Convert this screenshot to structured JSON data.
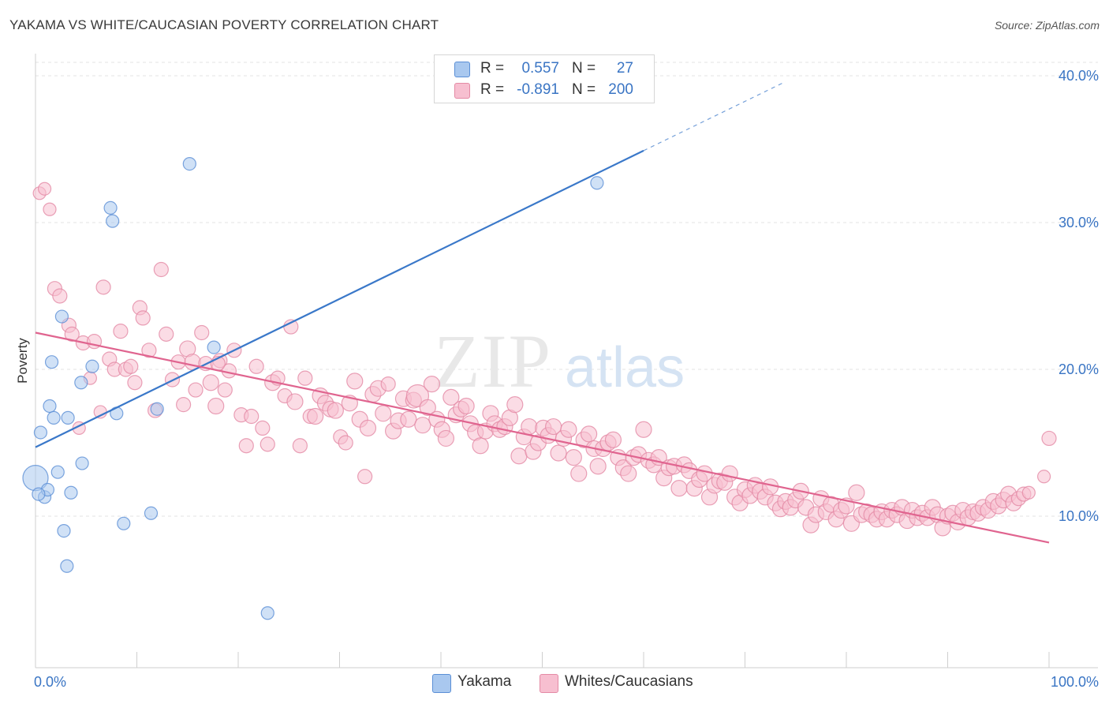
{
  "title": "YAKAMA VS WHITE/CAUCASIAN POVERTY CORRELATION CHART",
  "source": "Source: ZipAtlas.com",
  "watermark": {
    "zip": "ZIP",
    "atlas": "atlas"
  },
  "legend": {
    "rows": [
      {
        "r_label": "R =",
        "r_value": "0.557",
        "n_label": "N =",
        "n_value": "27",
        "color": "#a9c8ef",
        "border": "#5b8fd6"
      },
      {
        "r_label": "R =",
        "r_value": "-0.891",
        "n_label": "N =",
        "n_value": "200",
        "color": "#f7bfd0",
        "border": "#e48aa5"
      }
    ]
  },
  "bottom_legend": [
    {
      "label": "Yakama",
      "color": "#a9c8ef",
      "border": "#5b8fd6"
    },
    {
      "label": "Whites/Caucasians",
      "color": "#f7bfd0",
      "border": "#e48aa5"
    }
  ],
  "chart_data": {
    "type": "scatter",
    "title": "YAKAMA VS WHITE/CAUCASIAN POVERTY CORRELATION CHART",
    "xlabel": "",
    "ylabel": "Poverty",
    "xlim": [
      0,
      100
    ],
    "ylim": [
      0,
      40
    ],
    "x_tick_labels": [
      "0.0%",
      "100.0%"
    ],
    "y_ticks": [
      10,
      20,
      30,
      40
    ],
    "y_tick_labels": [
      "10.0%",
      "20.0%",
      "30.0%",
      "40.0%"
    ],
    "grid": true,
    "legend_position": "top-center",
    "series": [
      {
        "name": "Yakama",
        "color": "#a9c8ef",
        "stroke": "#5b8fd6",
        "trend_color": "#3a78c9",
        "trend": {
          "x0": 0,
          "y0": 14.7,
          "x1": 60,
          "y1": 34.9,
          "dash_to_x": 74,
          "dash_to_y": 39.6
        },
        "points": [
          [
            0.0,
            12.6,
            16
          ],
          [
            0.9,
            11.3,
            8
          ],
          [
            1.2,
            11.8,
            8
          ],
          [
            1.4,
            17.5,
            8
          ],
          [
            1.6,
            20.5,
            8
          ],
          [
            1.8,
            16.7,
            8
          ],
          [
            0.5,
            15.7,
            8
          ],
          [
            2.2,
            13.0,
            8
          ],
          [
            2.6,
            23.6,
            8
          ],
          [
            2.8,
            9.0,
            8
          ],
          [
            3.1,
            6.6,
            8
          ],
          [
            3.2,
            16.7,
            8
          ],
          [
            3.5,
            11.6,
            8
          ],
          [
            4.5,
            19.1,
            8
          ],
          [
            4.6,
            13.6,
            8
          ],
          [
            5.6,
            20.2,
            8
          ],
          [
            7.4,
            31.0,
            8
          ],
          [
            7.6,
            30.1,
            8
          ],
          [
            8.0,
            17.0,
            8
          ],
          [
            8.7,
            9.5,
            8
          ],
          [
            11.4,
            10.2,
            8
          ],
          [
            12.0,
            17.3,
            8
          ],
          [
            15.2,
            34.0,
            8
          ],
          [
            17.6,
            21.5,
            8
          ],
          [
            22.9,
            3.4,
            8
          ],
          [
            55.4,
            32.7,
            8
          ],
          [
            0.3,
            11.5,
            8
          ]
        ]
      },
      {
        "name": "Whites/Caucasians",
        "color": "#f7bfd0",
        "stroke": "#e48aa5",
        "trend_color": "#e0648f",
        "trend": {
          "x0": 0,
          "y0": 22.5,
          "x1": 100,
          "y1": 8.2
        },
        "points": [
          [
            0.4,
            32.0,
            8
          ],
          [
            0.9,
            32.3,
            8
          ],
          [
            1.4,
            30.9,
            8
          ],
          [
            1.9,
            25.5,
            9
          ],
          [
            2.4,
            25.0,
            9
          ],
          [
            3.3,
            23.0,
            9
          ],
          [
            3.6,
            22.4,
            9
          ],
          [
            4.3,
            16.0,
            8
          ],
          [
            4.7,
            21.8,
            9
          ],
          [
            5.4,
            19.4,
            8
          ],
          [
            5.8,
            21.9,
            9
          ],
          [
            6.4,
            17.1,
            8
          ],
          [
            6.7,
            25.6,
            9
          ],
          [
            7.3,
            20.7,
            9
          ],
          [
            7.8,
            20.0,
            9
          ],
          [
            8.4,
            22.6,
            9
          ],
          [
            8.9,
            20.0,
            9
          ],
          [
            9.4,
            20.2,
            9
          ],
          [
            9.8,
            19.1,
            9
          ],
          [
            10.3,
            24.2,
            9
          ],
          [
            10.6,
            23.5,
            9
          ],
          [
            11.2,
            21.3,
            9
          ],
          [
            11.8,
            17.2,
            9
          ],
          [
            12.4,
            26.8,
            9
          ],
          [
            12.9,
            22.4,
            9
          ],
          [
            13.5,
            19.3,
            9
          ],
          [
            14.1,
            20.5,
            9
          ],
          [
            14.6,
            17.6,
            9
          ],
          [
            15.0,
            21.4,
            10
          ],
          [
            15.5,
            20.5,
            10
          ],
          [
            15.8,
            18.6,
            9
          ],
          [
            16.4,
            22.5,
            9
          ],
          [
            16.8,
            20.4,
            9
          ],
          [
            17.3,
            19.1,
            10
          ],
          [
            17.8,
            17.5,
            10
          ],
          [
            18.2,
            20.6,
            9
          ],
          [
            18.7,
            18.6,
            9
          ],
          [
            19.1,
            19.9,
            9
          ],
          [
            19.6,
            21.3,
            9
          ],
          [
            20.3,
            16.9,
            9
          ],
          [
            20.8,
            14.8,
            9
          ],
          [
            21.3,
            16.8,
            9
          ],
          [
            21.8,
            20.2,
            9
          ],
          [
            22.4,
            16.0,
            9
          ],
          [
            22.9,
            14.9,
            9
          ],
          [
            23.4,
            19.1,
            10
          ],
          [
            23.9,
            19.4,
            9
          ],
          [
            24.6,
            18.2,
            9
          ],
          [
            25.2,
            22.9,
            9
          ],
          [
            25.6,
            17.8,
            10
          ],
          [
            26.1,
            14.8,
            9
          ],
          [
            26.6,
            19.4,
            9
          ],
          [
            27.1,
            16.8,
            9
          ],
          [
            27.6,
            16.8,
            10
          ],
          [
            28.1,
            18.2,
            10
          ],
          [
            28.6,
            17.7,
            10
          ],
          [
            29.1,
            17.3,
            10
          ],
          [
            29.6,
            17.2,
            10
          ],
          [
            30.1,
            15.4,
            9
          ],
          [
            30.6,
            15.0,
            9
          ],
          [
            31.0,
            17.7,
            10
          ],
          [
            31.5,
            19.2,
            10
          ],
          [
            32.0,
            16.6,
            10
          ],
          [
            32.5,
            12.7,
            9
          ],
          [
            32.8,
            16.0,
            10
          ],
          [
            33.3,
            18.3,
            10
          ],
          [
            33.8,
            18.7,
            10
          ],
          [
            34.3,
            17.0,
            10
          ],
          [
            34.8,
            19.0,
            9
          ],
          [
            35.3,
            15.8,
            10
          ],
          [
            35.8,
            16.5,
            10
          ],
          [
            36.3,
            18.0,
            10
          ],
          [
            36.8,
            16.6,
            10
          ],
          [
            37.3,
            17.9,
            10
          ],
          [
            37.7,
            18.2,
            14
          ],
          [
            38.2,
            16.2,
            10
          ],
          [
            38.7,
            17.4,
            10
          ],
          [
            39.1,
            19.0,
            10
          ],
          [
            39.6,
            16.6,
            10
          ],
          [
            40.1,
            15.9,
            10
          ],
          [
            40.5,
            15.3,
            10
          ],
          [
            41.0,
            18.1,
            10
          ],
          [
            41.5,
            16.9,
            10
          ],
          [
            42.0,
            17.3,
            10
          ],
          [
            42.5,
            17.5,
            10
          ],
          [
            42.9,
            16.3,
            10
          ],
          [
            43.4,
            15.7,
            10
          ],
          [
            43.9,
            14.8,
            10
          ],
          [
            44.4,
            15.8,
            10
          ],
          [
            44.9,
            17.0,
            10
          ],
          [
            45.3,
            16.3,
            10
          ],
          [
            45.8,
            15.9,
            10
          ],
          [
            46.3,
            16.1,
            10
          ],
          [
            46.8,
            16.7,
            10
          ],
          [
            47.3,
            17.6,
            10
          ],
          [
            47.7,
            14.1,
            10
          ],
          [
            48.2,
            15.4,
            10
          ],
          [
            48.7,
            16.1,
            10
          ],
          [
            49.1,
            14.4,
            10
          ],
          [
            49.6,
            15.0,
            10
          ],
          [
            50.1,
            16.0,
            10
          ],
          [
            50.6,
            15.5,
            10
          ],
          [
            51.1,
            16.1,
            10
          ],
          [
            51.6,
            14.3,
            10
          ],
          [
            52.1,
            15.3,
            10
          ],
          [
            52.6,
            15.9,
            10
          ],
          [
            53.1,
            14.0,
            10
          ],
          [
            53.6,
            12.9,
            10
          ],
          [
            54.1,
            15.2,
            10
          ],
          [
            54.6,
            15.6,
            10
          ],
          [
            55.1,
            14.6,
            10
          ],
          [
            55.5,
            13.4,
            10
          ],
          [
            56.0,
            14.6,
            10
          ],
          [
            56.5,
            15.0,
            10
          ],
          [
            57.0,
            15.2,
            10
          ],
          [
            57.5,
            14.0,
            10
          ],
          [
            58.0,
            13.3,
            10
          ],
          [
            58.5,
            12.9,
            10
          ],
          [
            59.0,
            14.0,
            10
          ],
          [
            59.5,
            14.2,
            10
          ],
          [
            60.0,
            15.9,
            10
          ],
          [
            60.5,
            13.8,
            10
          ],
          [
            61.0,
            13.5,
            10
          ],
          [
            61.5,
            14.0,
            10
          ],
          [
            62.0,
            12.6,
            10
          ],
          [
            62.5,
            13.3,
            10
          ],
          [
            63.0,
            13.4,
            10
          ],
          [
            63.5,
            11.9,
            10
          ],
          [
            64.0,
            13.5,
            10
          ],
          [
            64.5,
            13.1,
            10
          ],
          [
            65.0,
            11.9,
            10
          ],
          [
            65.5,
            12.5,
            10
          ],
          [
            66.0,
            12.9,
            10
          ],
          [
            66.5,
            11.3,
            10
          ],
          [
            67.0,
            12.1,
            10
          ],
          [
            67.5,
            12.4,
            10
          ],
          [
            68.0,
            12.3,
            10
          ],
          [
            68.5,
            12.9,
            10
          ],
          [
            69.0,
            11.3,
            10
          ],
          [
            69.5,
            10.9,
            10
          ],
          [
            70.0,
            11.8,
            10
          ],
          [
            70.5,
            11.4,
            10
          ],
          [
            71.0,
            12.1,
            10
          ],
          [
            71.5,
            11.7,
            10
          ],
          [
            72.0,
            11.3,
            10
          ],
          [
            72.5,
            12.0,
            10
          ],
          [
            73.0,
            10.9,
            10
          ],
          [
            73.5,
            10.5,
            10
          ],
          [
            74.0,
            11.0,
            10
          ],
          [
            74.5,
            10.6,
            10
          ],
          [
            75.0,
            11.1,
            10
          ],
          [
            75.5,
            11.7,
            10
          ],
          [
            76.0,
            10.6,
            10
          ],
          [
            76.5,
            9.4,
            10
          ],
          [
            77.0,
            10.1,
            10
          ],
          [
            77.5,
            11.2,
            10
          ],
          [
            78.0,
            10.3,
            10
          ],
          [
            78.5,
            10.8,
            10
          ],
          [
            79.0,
            9.8,
            10
          ],
          [
            79.5,
            10.4,
            10
          ],
          [
            80.0,
            10.7,
            10
          ],
          [
            80.5,
            9.5,
            10
          ],
          [
            81.0,
            11.6,
            10
          ],
          [
            81.5,
            10.1,
            10
          ],
          [
            82.0,
            10.3,
            10
          ],
          [
            82.5,
            10.1,
            10
          ],
          [
            83.0,
            9.8,
            10
          ],
          [
            83.5,
            10.3,
            10
          ],
          [
            84.0,
            9.8,
            10
          ],
          [
            84.5,
            10.4,
            10
          ],
          [
            85.0,
            10.1,
            10
          ],
          [
            85.5,
            10.6,
            10
          ],
          [
            86.0,
            9.7,
            10
          ],
          [
            86.5,
            10.4,
            10
          ],
          [
            87.0,
            9.9,
            10
          ],
          [
            87.5,
            10.2,
            10
          ],
          [
            88.0,
            9.9,
            10
          ],
          [
            88.5,
            10.6,
            10
          ],
          [
            89.0,
            10.1,
            10
          ],
          [
            89.5,
            9.2,
            10
          ],
          [
            90.0,
            10.0,
            10
          ],
          [
            90.5,
            10.2,
            10
          ],
          [
            91.0,
            9.6,
            10
          ],
          [
            91.5,
            10.4,
            10
          ],
          [
            92.0,
            9.9,
            10
          ],
          [
            92.5,
            10.3,
            10
          ],
          [
            93.0,
            10.2,
            10
          ],
          [
            93.5,
            10.6,
            10
          ],
          [
            94.0,
            10.4,
            10
          ],
          [
            94.5,
            11.0,
            10
          ],
          [
            95.0,
            10.7,
            10
          ],
          [
            95.5,
            11.1,
            10
          ],
          [
            96.0,
            11.5,
            10
          ],
          [
            96.5,
            10.9,
            10
          ],
          [
            97.0,
            11.2,
            9
          ],
          [
            97.5,
            11.5,
            9
          ],
          [
            98.0,
            11.6,
            8
          ],
          [
            99.5,
            12.7,
            8
          ],
          [
            100.0,
            15.3,
            9
          ],
          [
            18.0,
            20.4,
            9
          ]
        ]
      }
    ]
  }
}
